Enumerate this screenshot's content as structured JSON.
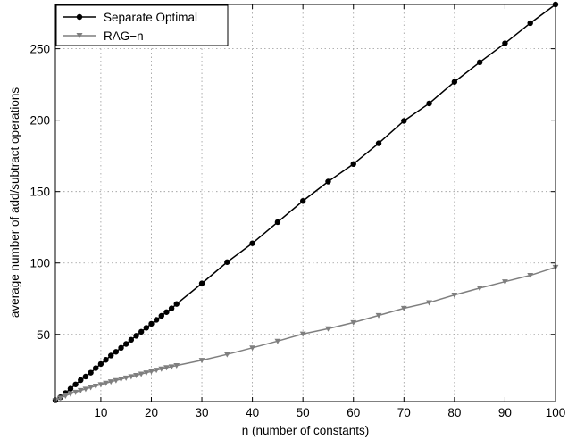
{
  "chart_data": {
    "type": "line",
    "title": "",
    "xlabel": "n (number of constants)",
    "ylabel": "average number of add/subtract operations",
    "xlim": [
      1,
      100
    ],
    "ylim": [
      3,
      281
    ],
    "xticks": [
      10,
      20,
      30,
      40,
      50,
      60,
      70,
      80,
      90,
      100
    ],
    "yticks": [
      50,
      100,
      150,
      200,
      250
    ],
    "grid": true,
    "legend_position": "top-left",
    "series": [
      {
        "name": "Separate Optimal",
        "color": "#000000",
        "marker": "circle",
        "x": [
          1,
          2,
          3,
          4,
          5,
          6,
          7,
          8,
          9,
          10,
          11,
          12,
          13,
          14,
          15,
          16,
          17,
          18,
          19,
          20,
          21,
          22,
          23,
          24,
          25,
          30,
          35,
          40,
          45,
          50,
          55,
          60,
          65,
          70,
          75,
          80,
          85,
          90,
          95,
          100
        ],
        "y": [
          3.9,
          6.0,
          9.0,
          12.0,
          15.0,
          18.0,
          20.5,
          23.2,
          26.4,
          29.3,
          32.2,
          35.2,
          37.8,
          40.6,
          43.3,
          46.2,
          49.0,
          51.8,
          54.6,
          57.4,
          60.2,
          63.0,
          65.6,
          68.2,
          71.3,
          85.7,
          100.6,
          113.8,
          128.6,
          143.4,
          157.0,
          169.3,
          183.8,
          199.5,
          211.7,
          226.8,
          240.5,
          253.8,
          267.9,
          281.0
        ]
      },
      {
        "name": "RAG−n",
        "color": "#7f7f7f",
        "marker": "triangle-down",
        "x": [
          1,
          2,
          3,
          4,
          5,
          6,
          7,
          8,
          9,
          10,
          11,
          12,
          13,
          14,
          15,
          16,
          17,
          18,
          19,
          20,
          21,
          22,
          23,
          24,
          25,
          30,
          35,
          40,
          45,
          50,
          55,
          60,
          65,
          70,
          75,
          80,
          85,
          90,
          95,
          100
        ],
        "y": [
          3.9,
          5.5,
          7.0,
          8.4,
          9.6,
          10.8,
          11.8,
          12.9,
          13.9,
          14.9,
          15.9,
          16.9,
          17.8,
          18.7,
          19.6,
          20.5,
          21.4,
          22.3,
          23.2,
          24.1,
          25.0,
          25.9,
          26.8,
          27.4,
          28.2,
          31.9,
          36.0,
          40.6,
          45.3,
          50.3,
          54.0,
          58.3,
          63.3,
          68.3,
          72.3,
          77.6,
          82.4,
          86.9,
          91.3,
          97.0
        ]
      }
    ]
  }
}
